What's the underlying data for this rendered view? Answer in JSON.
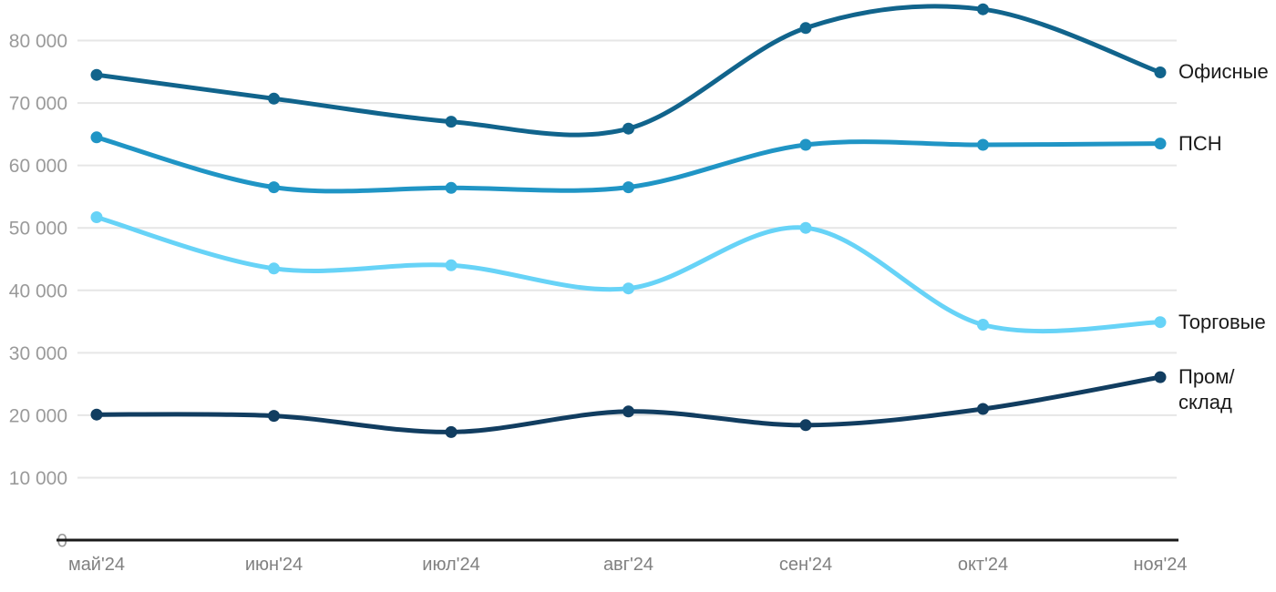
{
  "chart_data": {
    "type": "line",
    "x": [
      "май'24",
      "июн'24",
      "июл'24",
      "авг'24",
      "сен'24",
      "окт'24",
      "ноя'24"
    ],
    "series": [
      {
        "id": "offices",
        "name": "Офисные",
        "label": "Офисные",
        "color": "#11648c",
        "values": [
          74500,
          70700,
          67000,
          65900,
          82000,
          85000,
          74900
        ]
      },
      {
        "id": "psn",
        "name": "ПСН",
        "label": "ПСН",
        "color": "#2095c5",
        "values": [
          64500,
          56500,
          56400,
          56500,
          63300,
          63300,
          63500
        ]
      },
      {
        "id": "retail",
        "name": "Торговые",
        "label": "Торговые",
        "color": "#67d3f7",
        "values": [
          51700,
          43500,
          44000,
          40300,
          50000,
          34500,
          34900
        ]
      },
      {
        "id": "industrial",
        "name": "Пром/склад",
        "label": "Пром/\nсклад",
        "color": "#113d60",
        "values": [
          20100,
          19900,
          17300,
          20600,
          18400,
          21000,
          26100
        ]
      }
    ],
    "yticks": [
      0,
      10000,
      20000,
      30000,
      40000,
      50000,
      60000,
      70000,
      80000
    ],
    "ytick_labels": [
      "0",
      "10 000",
      "20 000",
      "30 000",
      "40 000",
      "50 000",
      "60 000",
      "70 000",
      "80 000"
    ],
    "ylim": [
      0,
      86500
    ],
    "grid": true,
    "legend_position": "right-end-labels",
    "title": "",
    "xlabel": "",
    "ylabel": ""
  },
  "colors": {
    "background": "#ffffff",
    "gridline": "#e6e6e6",
    "axis_line": "#1a1a1a",
    "ytick_text": "#9a9a9a",
    "xtick_text": "#808080",
    "end_label_text": "#1a1a1a"
  }
}
